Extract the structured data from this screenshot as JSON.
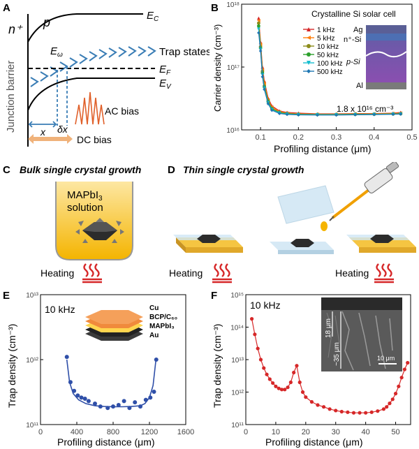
{
  "panelA": {
    "label": "A",
    "n_plus": "n⁺",
    "p": "p",
    "Ec": "E",
    "Ec_sub": "C",
    "Ew": "E",
    "Ew_sub": "ω",
    "trap_states": "Trap states",
    "Ef": "E",
    "Ef_sub": "F",
    "Ev": "E",
    "Ev_sub": "V",
    "junction_barrier": "Junction barrier",
    "x": "x",
    "dx": "δx",
    "ac_bias": "AC bias",
    "dc_bias": "DC bias"
  },
  "panelB": {
    "label": "B",
    "ylabel": "Carrier density (cm⁻³)",
    "xlabel": "Profiling distance (μm)",
    "inset_title": "Crystalline Si solar cell",
    "layers": [
      "Ag",
      "n⁺-Si",
      "p-Si",
      "Al"
    ],
    "value_label": "1.8 x 10¹⁶ cm⁻³",
    "colors": {
      "ag": "#5a5f96",
      "n_si": "#4d6fb3",
      "p_si_top": "#6a5aa8",
      "p_si_bot": "#8a4fb0",
      "al": "#7a7a7a"
    }
  },
  "panelC": {
    "label": "C",
    "title": "Bulk single crystal growth",
    "solution_line1": "MAPbI",
    "solution_sub": "3",
    "solution_line2": "solution",
    "heating": "Heating"
  },
  "panelD": {
    "label": "D",
    "title": "Thin single crystal growth",
    "heating_left": "Heating",
    "heating_right": "Heating"
  },
  "panelE": {
    "label": "E",
    "freq": "10 kHz",
    "ylabel": "Trap density (cm⁻³)",
    "xlabel": "Profiling distance (μm)",
    "stack_layers": [
      "Cu",
      "BCP/C₆₀",
      "MAPbI₃",
      "Au"
    ]
  },
  "panelF": {
    "label": "F",
    "freq": "10 kHz",
    "ylabel": "Trap density (cm⁻³)",
    "xlabel": "Profiling distance (μm)",
    "sem_label_18": "18 μm",
    "sem_label_35": "~35 μm",
    "sem_scale": "10 μm"
  },
  "chart_data": [
    {
      "id": "B",
      "type": "line",
      "title": "",
      "xlabel": "Profiling distance (μm)",
      "ylabel": "Carrier density (cm⁻³)",
      "xlim": [
        0.05,
        0.5
      ],
      "ylim_log10": [
        16,
        18
      ],
      "xticks": [
        0.1,
        0.2,
        0.3,
        0.4,
        0.5
      ],
      "yticks_log10": [
        16,
        17,
        18
      ],
      "ytick_labels": [
        "10¹⁶",
        "10¹⁷",
        "10¹⁸"
      ],
      "series": [
        {
          "name": "1 kHz",
          "color": "#d62728",
          "marker": "triangle-up",
          "x": [
            0.095,
            0.1,
            0.105,
            0.11,
            0.12,
            0.13,
            0.15,
            0.17,
            0.2,
            0.25,
            0.3,
            0.35,
            0.4,
            0.45,
            0.47
          ],
          "y": [
            6e+17,
            2.5e+17,
            1e+17,
            6e+16,
            3.2e+16,
            2.4e+16,
            2e+16,
            1.9e+16,
            1.85e+16,
            1.8e+16,
            1.8e+16,
            1.82e+16,
            1.82e+16,
            1.85e+16,
            1.9e+16
          ]
        },
        {
          "name": "5 kHz",
          "color": "#ff7f0e",
          "marker": "triangle-left",
          "x": [
            0.095,
            0.1,
            0.105,
            0.11,
            0.12,
            0.13,
            0.15,
            0.17,
            0.2,
            0.25,
            0.3,
            0.35,
            0.4,
            0.45,
            0.47
          ],
          "y": [
            5.5e+17,
            2.3e+17,
            9e+16,
            5.5e+16,
            3e+16,
            2.3e+16,
            1.95e+16,
            1.85e+16,
            1.8e+16,
            1.78e+16,
            1.78e+16,
            1.8e+16,
            1.8e+16,
            1.83e+16,
            1.85e+16
          ]
        },
        {
          "name": "10 kHz",
          "color": "#8c8c1a",
          "marker": "circle",
          "x": [
            0.095,
            0.1,
            0.105,
            0.11,
            0.12,
            0.13,
            0.15,
            0.17,
            0.2,
            0.25,
            0.3,
            0.35,
            0.4,
            0.45,
            0.47
          ],
          "y": [
            5e+17,
            2.1e+17,
            8.5e+16,
            5e+16,
            2.9e+16,
            2.2e+16,
            1.9e+16,
            1.82e+16,
            1.78e+16,
            1.76e+16,
            1.76e+16,
            1.78e+16,
            1.78e+16,
            1.8e+16,
            1.82e+16
          ]
        },
        {
          "name": "50 kHz",
          "color": "#2ca02c",
          "marker": "circle",
          "x": [
            0.095,
            0.1,
            0.105,
            0.11,
            0.12,
            0.13,
            0.15,
            0.17,
            0.2,
            0.25,
            0.3,
            0.35,
            0.4,
            0.45,
            0.47
          ],
          "y": [
            4.5e+17,
            2e+17,
            8e+16,
            4.8e+16,
            2.8e+16,
            2.15e+16,
            1.88e+16,
            1.8e+16,
            1.76e+16,
            1.75e+16,
            1.75e+16,
            1.76e+16,
            1.77e+16,
            1.79e+16,
            1.8e+16
          ]
        },
        {
          "name": "100 kHz",
          "color": "#17becf",
          "marker": "triangle-down",
          "x": [
            0.095,
            0.1,
            0.105,
            0.11,
            0.12,
            0.13,
            0.15,
            0.17,
            0.2,
            0.25,
            0.3,
            0.35,
            0.4,
            0.45,
            0.47
          ],
          "y": [
            4e+17,
            1.9e+17,
            7.5e+16,
            4.6e+16,
            2.7e+16,
            2.1e+16,
            1.85e+16,
            1.78e+16,
            1.75e+16,
            1.74e+16,
            1.74e+16,
            1.75e+16,
            1.76e+16,
            1.78e+16,
            1.79e+16
          ]
        },
        {
          "name": "500 kHz",
          "color": "#1f77b4",
          "marker": "diamond",
          "x": [
            0.095,
            0.1,
            0.105,
            0.11,
            0.12,
            0.13,
            0.15,
            0.17,
            0.2,
            0.25,
            0.3,
            0.35,
            0.4,
            0.45,
            0.47
          ],
          "y": [
            3.5e+17,
            1.8e+17,
            7e+16,
            4.4e+16,
            2.6e+16,
            2.05e+16,
            1.82e+16,
            1.76e+16,
            1.73e+16,
            1.72e+16,
            1.72e+16,
            1.74e+16,
            1.75e+16,
            1.77e+16,
            1.78e+16
          ]
        }
      ]
    },
    {
      "id": "E",
      "type": "scatter",
      "xlabel": "Profiling distance (μm)",
      "ylabel": "Trap density (cm⁻³)",
      "xlim": [
        0,
        1600
      ],
      "ylim_log10": [
        11,
        13
      ],
      "xticks": [
        0,
        400,
        800,
        1200,
        1600
      ],
      "yticks_log10": [
        11,
        12,
        13
      ],
      "ytick_labels": [
        "10¹¹",
        "10¹²",
        "10¹³"
      ],
      "series": [
        {
          "name": "data",
          "color": "#2f4fa8",
          "x": [
            290,
            330,
            370,
            410,
            450,
            490,
            530,
            600,
            660,
            740,
            800,
            860,
            920,
            980,
            1040,
            1100,
            1160,
            1210,
            1250,
            1275
          ],
          "y": [
            1100000000000.0,
            450000000000.0,
            330000000000.0,
            280000000000.0,
            260000000000.0,
            250000000000.0,
            230000000000.0,
            210000000000.0,
            190000000000.0,
            180000000000.0,
            190000000000.0,
            200000000000.0,
            230000000000.0,
            180000000000.0,
            220000000000.0,
            190000000000.0,
            240000000000.0,
            260000000000.0,
            320000000000.0,
            1000000000000.0
          ]
        },
        {
          "name": "fit",
          "color": "#2f4fa8",
          "line": true,
          "x": [
            290,
            320,
            360,
            420,
            500,
            600,
            700,
            800,
            900,
            1000,
            1100,
            1150,
            1200,
            1240,
            1270
          ],
          "y": [
            1000000000000.0,
            450000000000.0,
            300000000000.0,
            240000000000.0,
            210000000000.0,
            195000000000.0,
            190000000000.0,
            188000000000.0,
            188000000000.0,
            190000000000.0,
            195000000000.0,
            210000000000.0,
            260000000000.0,
            400000000000.0,
            950000000000.0
          ]
        }
      ]
    },
    {
      "id": "F",
      "type": "line",
      "xlabel": "Profiling distance (μm)",
      "ylabel": "Trap density (cm⁻³)",
      "xlim": [
        0,
        55
      ],
      "ylim_log10": [
        11,
        15
      ],
      "xticks": [
        0,
        10,
        20,
        30,
        40,
        50
      ],
      "yticks_log10": [
        11,
        12,
        13,
        14,
        15
      ],
      "ytick_labels": [
        "10¹¹",
        "10¹²",
        "10¹³",
        "10¹⁴",
        "10¹⁵"
      ],
      "series": [
        {
          "name": "data",
          "color": "#d62728",
          "x": [
            2,
            3,
            4,
            5,
            6,
            7,
            8,
            9,
            10,
            11,
            12,
            13,
            14,
            15,
            16,
            17,
            18,
            19,
            20,
            22,
            24,
            26,
            28,
            30,
            32,
            34,
            36,
            38,
            40,
            42,
            44,
            46,
            47,
            48,
            49,
            50,
            51,
            52,
            53,
            54
          ],
          "y": [
            180000000000000.0,
            60000000000000.0,
            22000000000000.0,
            10000000000000.0,
            5500000000000.0,
            3500000000000.0,
            2500000000000.0,
            1900000000000.0,
            1500000000000.0,
            1300000000000.0,
            1200000000000.0,
            1200000000000.0,
            1400000000000.0,
            2000000000000.0,
            4000000000000.0,
            6500000000000.0,
            2000000000000.0,
            1000000000000.0,
            700000000000.0,
            500000000000.0,
            400000000000.0,
            350000000000.0,
            300000000000.0,
            270000000000.0,
            250000000000.0,
            240000000000.0,
            230000000000.0,
            230000000000.0,
            230000000000.0,
            240000000000.0,
            260000000000.0,
            300000000000.0,
            350000000000.0,
            450000000000.0,
            600000000000.0,
            900000000000.0,
            1500000000000.0,
            2800000000000.0,
            5000000000000.0,
            8000000000000.0
          ]
        }
      ]
    }
  ]
}
